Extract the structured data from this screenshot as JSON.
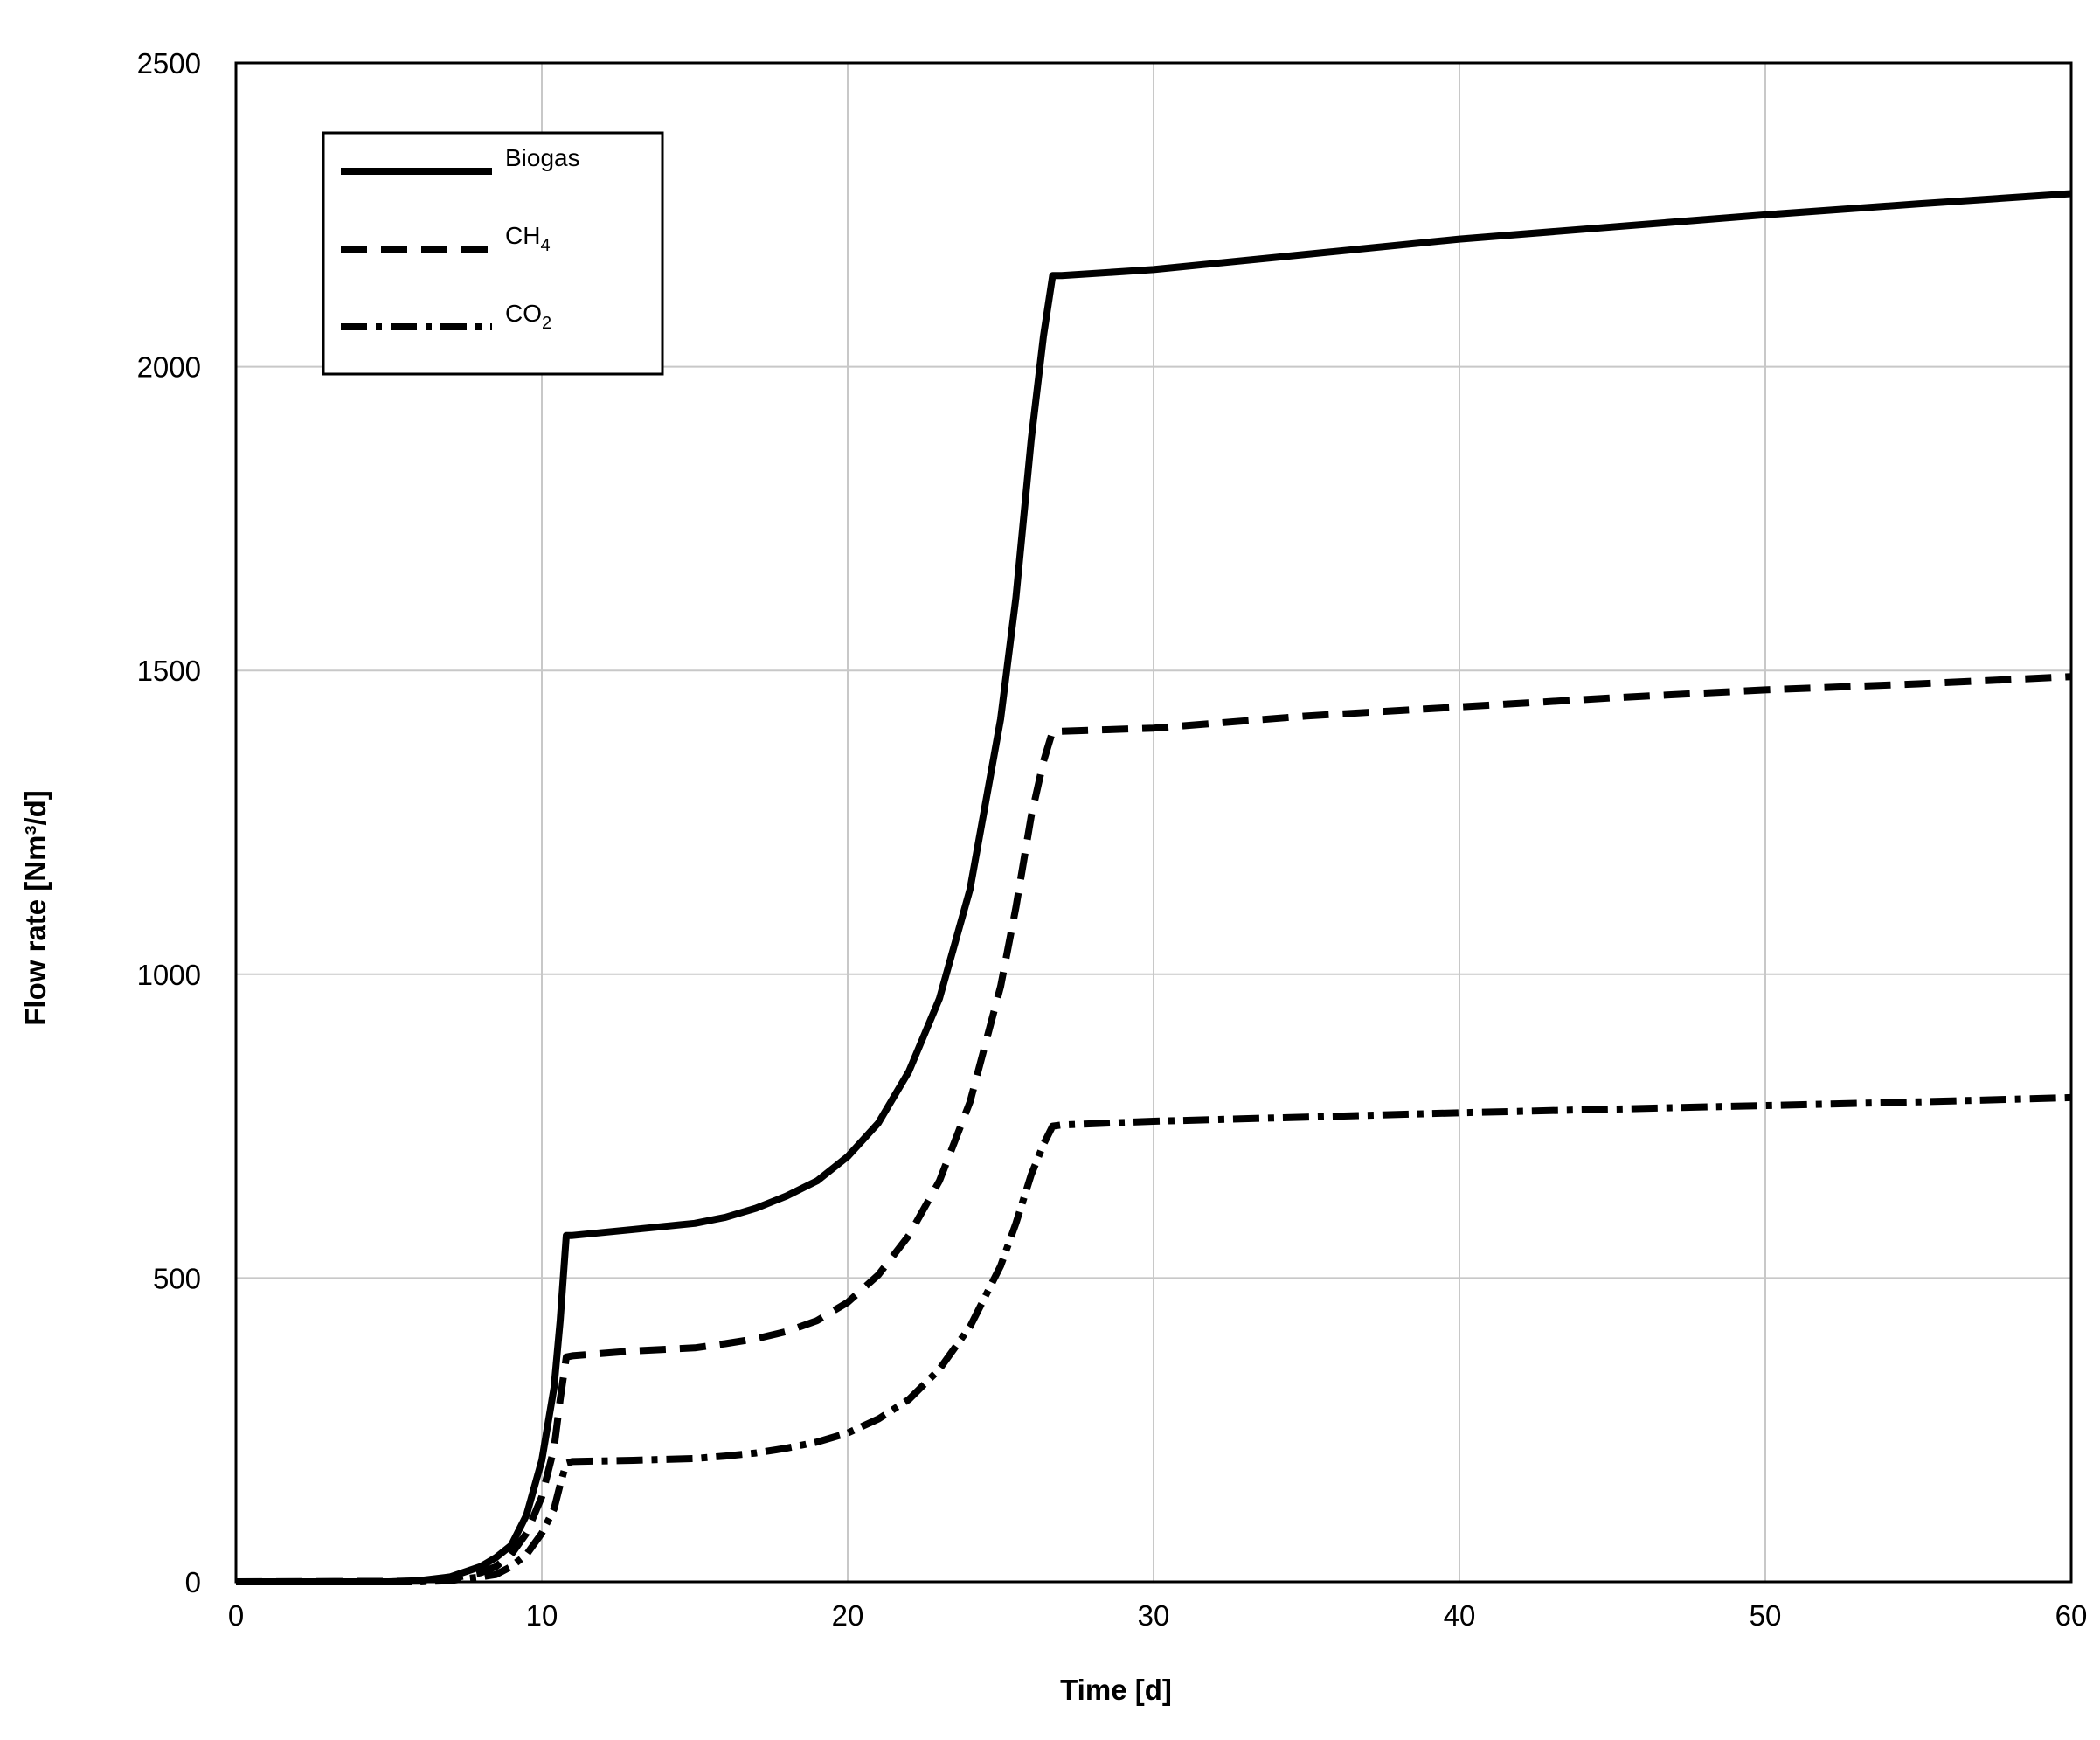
{
  "chart_data": {
    "type": "line",
    "title": "",
    "xlabel": "Time [d]",
    "ylabel": "Flow rate [Nm³/d]",
    "xlim": [
      0,
      60
    ],
    "ylim": [
      0,
      2500
    ],
    "xticks": [
      0,
      10,
      20,
      30,
      40,
      50,
      60
    ],
    "yticks": [
      0,
      500,
      1000,
      1500,
      2000,
      2500
    ],
    "xtick_labels": [
      "0",
      "10",
      "20",
      "30",
      "40",
      "50",
      "60"
    ],
    "ytick_labels": [
      "0",
      "500",
      "1000",
      "1500",
      "2000",
      "2500"
    ],
    "grid": true,
    "legend_position": "top-left",
    "series": [
      {
        "name": "Biogas",
        "legend_main": "Biogas",
        "legend_sub": "",
        "style": "solid",
        "color": "#000000",
        "points": [
          [
            0,
            0
          ],
          [
            5,
            0
          ],
          [
            6,
            2
          ],
          [
            7,
            8
          ],
          [
            8,
            25
          ],
          [
            8.5,
            40
          ],
          [
            9,
            60
          ],
          [
            9.5,
            110
          ],
          [
            10,
            200
          ],
          [
            10.4,
            320
          ],
          [
            10.6,
            430
          ],
          [
            10.8,
            570
          ],
          [
            11,
            570
          ],
          [
            13,
            580
          ],
          [
            15,
            590
          ],
          [
            16,
            600
          ],
          [
            17,
            615
          ],
          [
            18,
            635
          ],
          [
            19,
            660
          ],
          [
            20,
            700
          ],
          [
            21,
            755
          ],
          [
            22,
            840
          ],
          [
            23,
            960
          ],
          [
            24,
            1140
          ],
          [
            25,
            1420
          ],
          [
            25.5,
            1620
          ],
          [
            26,
            1880
          ],
          [
            26.4,
            2050
          ],
          [
            26.7,
            2150
          ],
          [
            27,
            2150
          ],
          [
            30,
            2160
          ],
          [
            35,
            2185
          ],
          [
            40,
            2210
          ],
          [
            45,
            2230
          ],
          [
            50,
            2250
          ],
          [
            55,
            2268
          ],
          [
            60,
            2285
          ]
        ]
      },
      {
        "name": "CH4",
        "legend_main": "CH",
        "legend_sub": "4",
        "style": "dashed",
        "color": "#000000",
        "points": [
          [
            0,
            0
          ],
          [
            6,
            1
          ],
          [
            7,
            5
          ],
          [
            8,
            15
          ],
          [
            8.5,
            25
          ],
          [
            9,
            45
          ],
          [
            9.5,
            80
          ],
          [
            10,
            140
          ],
          [
            10.4,
            220
          ],
          [
            10.6,
            300
          ],
          [
            10.8,
            370
          ],
          [
            11,
            372
          ],
          [
            13,
            380
          ],
          [
            15,
            385
          ],
          [
            16,
            392
          ],
          [
            17,
            400
          ],
          [
            18,
            412
          ],
          [
            19,
            430
          ],
          [
            20,
            460
          ],
          [
            21,
            505
          ],
          [
            22,
            570
          ],
          [
            23,
            660
          ],
          [
            24,
            790
          ],
          [
            25,
            980
          ],
          [
            25.5,
            1110
          ],
          [
            26,
            1260
          ],
          [
            26.4,
            1350
          ],
          [
            26.7,
            1400
          ],
          [
            27,
            1400
          ],
          [
            30,
            1405
          ],
          [
            35,
            1425
          ],
          [
            40,
            1440
          ],
          [
            45,
            1455
          ],
          [
            50,
            1468
          ],
          [
            55,
            1478
          ],
          [
            60,
            1490
          ]
        ]
      },
      {
        "name": "CO2",
        "legend_main": "CO",
        "legend_sub": "2",
        "style": "dashdot",
        "color": "#000000",
        "points": [
          [
            0,
            0
          ],
          [
            6,
            0
          ],
          [
            7,
            2
          ],
          [
            8,
            8
          ],
          [
            8.5,
            12
          ],
          [
            9,
            25
          ],
          [
            9.5,
            45
          ],
          [
            10,
            80
          ],
          [
            10.4,
            120
          ],
          [
            10.6,
            160
          ],
          [
            10.8,
            195
          ],
          [
            11,
            198
          ],
          [
            13,
            200
          ],
          [
            15,
            203
          ],
          [
            16,
            207
          ],
          [
            17,
            212
          ],
          [
            18,
            220
          ],
          [
            19,
            230
          ],
          [
            20,
            245
          ],
          [
            21,
            268
          ],
          [
            22,
            300
          ],
          [
            23,
            350
          ],
          [
            24,
            420
          ],
          [
            25,
            520
          ],
          [
            25.5,
            590
          ],
          [
            26,
            670
          ],
          [
            26.4,
            720
          ],
          [
            26.7,
            750
          ],
          [
            27,
            752
          ],
          [
            30,
            758
          ],
          [
            35,
            765
          ],
          [
            40,
            772
          ],
          [
            45,
            778
          ],
          [
            50,
            784
          ],
          [
            55,
            790
          ],
          [
            60,
            797
          ]
        ]
      }
    ]
  }
}
